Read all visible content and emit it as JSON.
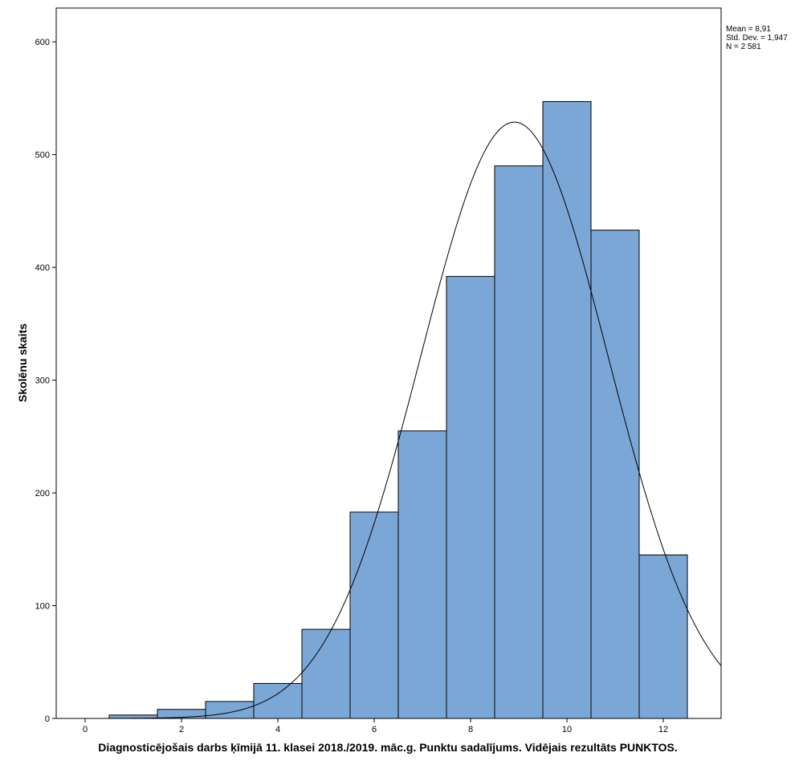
{
  "chart_data": {
    "type": "bar",
    "subtype": "histogram",
    "bin_width": 1,
    "x": [
      1,
      2,
      3,
      4,
      5,
      6,
      7,
      8,
      9,
      10,
      11,
      12
    ],
    "values": [
      3,
      8,
      15,
      31,
      79,
      183,
      255,
      392,
      490,
      547,
      433,
      145
    ],
    "bar_color": "#7BA7D6",
    "xlabel": "Diagnosticējošais darbs ķīmijā 11. klasei 2018./2019. māc.g. Punktu sadalījums. Vidējais rezultāts PUNKTOS.",
    "ylabel": "Skolēnu skaits",
    "xlim": [
      -0.6,
      13.2
    ],
    "ylim": [
      0,
      630
    ],
    "xticks": [
      0,
      2,
      4,
      6,
      8,
      10,
      12
    ],
    "yticks": [
      0,
      100,
      200,
      300,
      400,
      500,
      600
    ],
    "normal_curve": {
      "mean": 8.91,
      "std": 1.947,
      "n": 2581
    },
    "stats": [
      "Mean = 8,91",
      "Std. Dev. = 1,947",
      "N = 2 581"
    ],
    "grid": false
  }
}
